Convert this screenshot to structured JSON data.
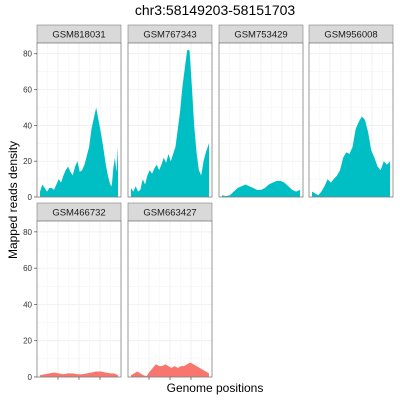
{
  "chart_data": {
    "type": "area",
    "title": "chr3:58149203-58151703",
    "xlabel": "Genome positions",
    "ylabel": "Mapped reads density",
    "ylim": [
      0,
      86
    ],
    "yticks": [
      0,
      20,
      40,
      60,
      80
    ],
    "xlim": [
      0,
      1
    ],
    "grid": true,
    "legend": "none",
    "colors": {
      "teal": "#00BFC4",
      "salmon": "#F8766D",
      "strip_fill": "#D9D9D9",
      "panel_border": "#7F7F7F",
      "grid": "#EBEBEB"
    },
    "panels": [
      {
        "name": "GSM818031",
        "color": "teal",
        "x": [
          0,
          0.03,
          0.06,
          0.09,
          0.12,
          0.15,
          0.18,
          0.21,
          0.24,
          0.27,
          0.3,
          0.33,
          0.36,
          0.39,
          0.42,
          0.45,
          0.48,
          0.51,
          0.54,
          0.57,
          0.6,
          0.63,
          0.66,
          0.69,
          0.72,
          0.75,
          0.78,
          0.81,
          0.84,
          0.87,
          0.9,
          0.92,
          0.94,
          0.96,
          0.98,
          1
        ],
        "y": [
          3,
          7,
          5,
          3,
          5,
          5,
          4,
          7,
          10,
          8,
          12,
          15,
          17,
          14,
          12,
          17,
          20,
          14,
          15,
          18,
          23,
          28,
          38,
          44,
          50,
          43,
          36,
          28,
          19,
          12,
          7,
          6,
          16,
          22,
          14,
          28
        ]
      },
      {
        "name": "GSM767343",
        "color": "teal",
        "x": [
          0,
          0.03,
          0.06,
          0.09,
          0.12,
          0.15,
          0.18,
          0.21,
          0.24,
          0.27,
          0.3,
          0.33,
          0.36,
          0.39,
          0.42,
          0.45,
          0.48,
          0.51,
          0.54,
          0.57,
          0.6,
          0.63,
          0.66,
          0.69,
          0.72,
          0.75,
          0.78,
          0.81,
          0.84,
          0.87,
          0.9,
          0.93,
          0.96,
          1
        ],
        "y": [
          5,
          3,
          6,
          3,
          4,
          10,
          7,
          12,
          15,
          13,
          16,
          18,
          15,
          18,
          22,
          19,
          24,
          20,
          24,
          28,
          38,
          48,
          62,
          72,
          82,
          82,
          62,
          40,
          25,
          15,
          12,
          20,
          25,
          30
        ]
      },
      {
        "name": "GSM753429",
        "color": "teal",
        "x": [
          0,
          0.05,
          0.1,
          0.15,
          0.2,
          0.25,
          0.3,
          0.35,
          0.4,
          0.45,
          0.5,
          0.55,
          0.6,
          0.65,
          0.7,
          0.75,
          0.8,
          0.85,
          0.9,
          0.95,
          1
        ],
        "y": [
          1,
          0.5,
          1,
          3,
          5,
          6,
          7,
          6,
          5,
          4,
          4,
          5,
          7,
          8,
          9,
          9,
          8,
          6,
          4,
          3,
          4
        ]
      },
      {
        "name": "GSM956008",
        "color": "teal",
        "x": [
          0,
          0.04,
          0.08,
          0.12,
          0.16,
          0.2,
          0.24,
          0.28,
          0.32,
          0.36,
          0.4,
          0.44,
          0.48,
          0.52,
          0.56,
          0.6,
          0.64,
          0.68,
          0.72,
          0.76,
          0.8,
          0.84,
          0.88,
          0.92,
          0.96,
          1
        ],
        "y": [
          3,
          2,
          1,
          3,
          6,
          10,
          8,
          10,
          12,
          15,
          22,
          25,
          24,
          28,
          38,
          42,
          45,
          43,
          36,
          26,
          22,
          17,
          15,
          20,
          18,
          20
        ]
      },
      {
        "name": "GSM466732",
        "color": "salmon",
        "x": [
          0,
          0.06,
          0.12,
          0.18,
          0.24,
          0.3,
          0.36,
          0.42,
          0.48,
          0.54,
          0.6,
          0.66,
          0.72,
          0.78,
          0.84,
          0.9,
          0.95,
          1
        ],
        "y": [
          1,
          1.5,
          2,
          2.5,
          2,
          1.5,
          2,
          2,
          1.5,
          1.5,
          2,
          2.5,
          3,
          3,
          2.5,
          2,
          2,
          1
        ]
      },
      {
        "name": "GSM663427",
        "color": "salmon",
        "x": [
          0,
          0.04,
          0.08,
          0.12,
          0.16,
          0.2,
          0.24,
          0.28,
          0.32,
          0.36,
          0.4,
          0.44,
          0.48,
          0.52,
          0.56,
          0.6,
          0.64,
          0.68,
          0.72,
          0.76,
          0.8,
          0.84,
          0.88,
          0.92,
          0.96,
          1
        ],
        "y": [
          1,
          2,
          3,
          2,
          1,
          0.5,
          3,
          5,
          7,
          6,
          6,
          7,
          6,
          5,
          6,
          5,
          6,
          6,
          7,
          8,
          7,
          6,
          5,
          4,
          3,
          2
        ]
      }
    ]
  }
}
